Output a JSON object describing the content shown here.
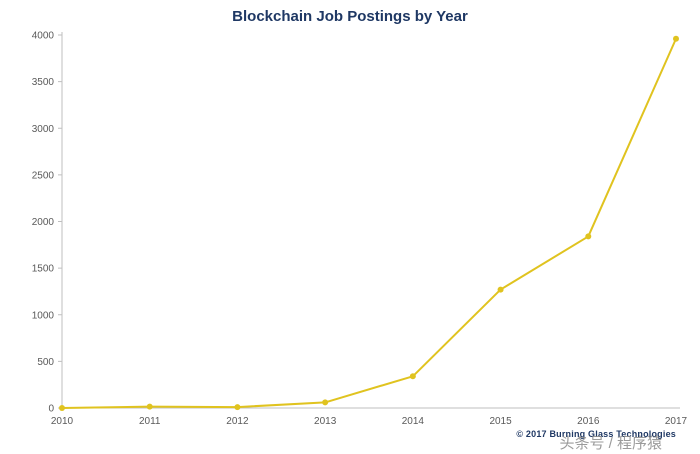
{
  "chart_data": {
    "type": "line",
    "title": "Blockchain Job Postings by Year",
    "categories": [
      "2010",
      "2011",
      "2012",
      "2013",
      "2014",
      "2015",
      "2016",
      "2017"
    ],
    "series": [
      {
        "name": "Blockchain Job Postings",
        "values": [
          0,
          15,
          10,
          60,
          340,
          1270,
          1840,
          3960
        ]
      }
    ],
    "xlabel": "",
    "ylabel": "",
    "ylim": [
      0,
      4000
    ],
    "ytick_step": 500,
    "grid": false,
    "legend_position": "none",
    "line_color": "#e0c31f",
    "marker_color": "#e0c31f",
    "axis_color": "#bfbfbf",
    "label_color": "#595959",
    "title_color": "#1f3864"
  },
  "footer": {
    "copyright": "© 2017 Burning Glass Technologies",
    "watermark": "头条号 / 程序猿"
  }
}
